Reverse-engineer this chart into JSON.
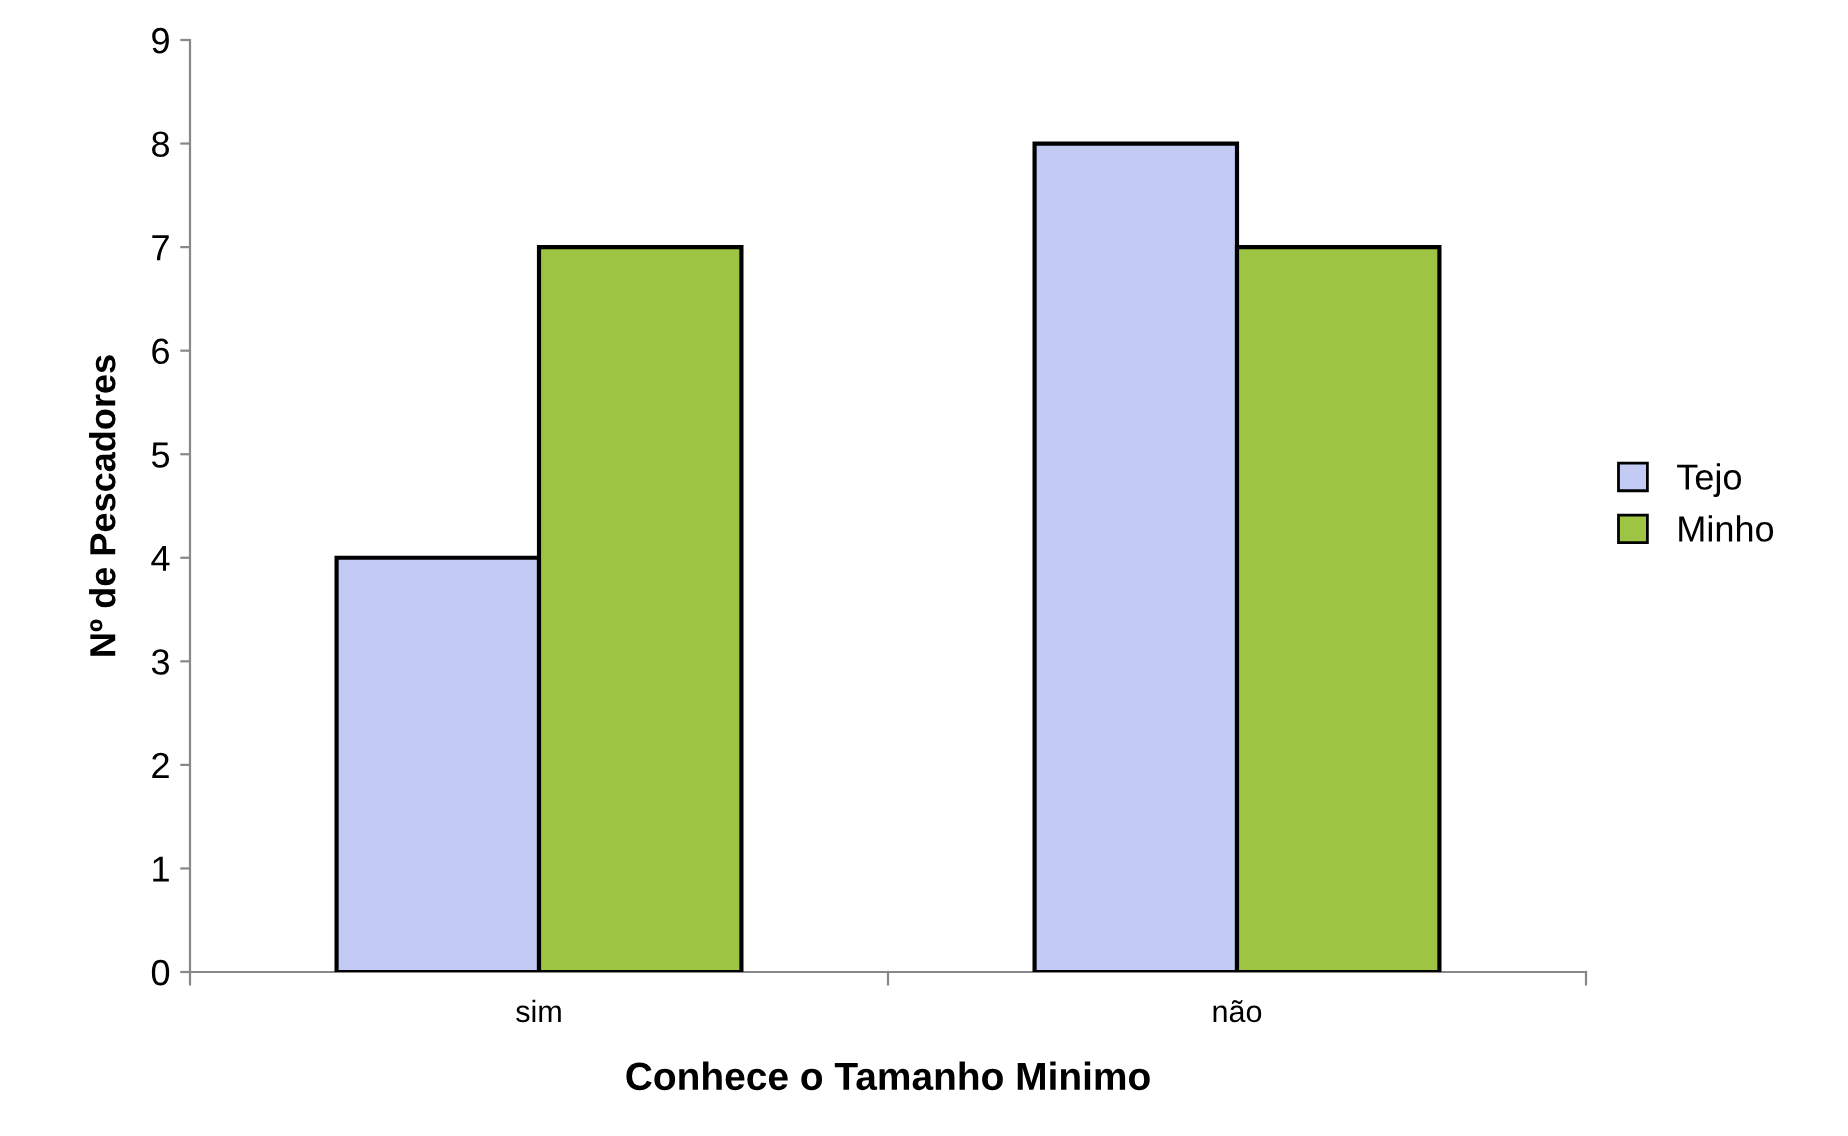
{
  "chart_data": {
    "type": "bar",
    "xlabel": "Conhece o Tamanho Minimo",
    "ylabel": "Nº de Pescadores",
    "categories": [
      "sim",
      "não"
    ],
    "series": [
      {
        "name": "Tejo",
        "color": "#c3cbf5",
        "values": [
          4,
          8
        ]
      },
      {
        "name": "Minho",
        "color": "#9dc443",
        "values": [
          7,
          7
        ]
      }
    ],
    "ylim": [
      0,
      9
    ],
    "yticks": [
      0,
      1,
      2,
      3,
      4,
      5,
      6,
      7,
      8,
      9
    ],
    "grid": false,
    "legend": "right"
  }
}
